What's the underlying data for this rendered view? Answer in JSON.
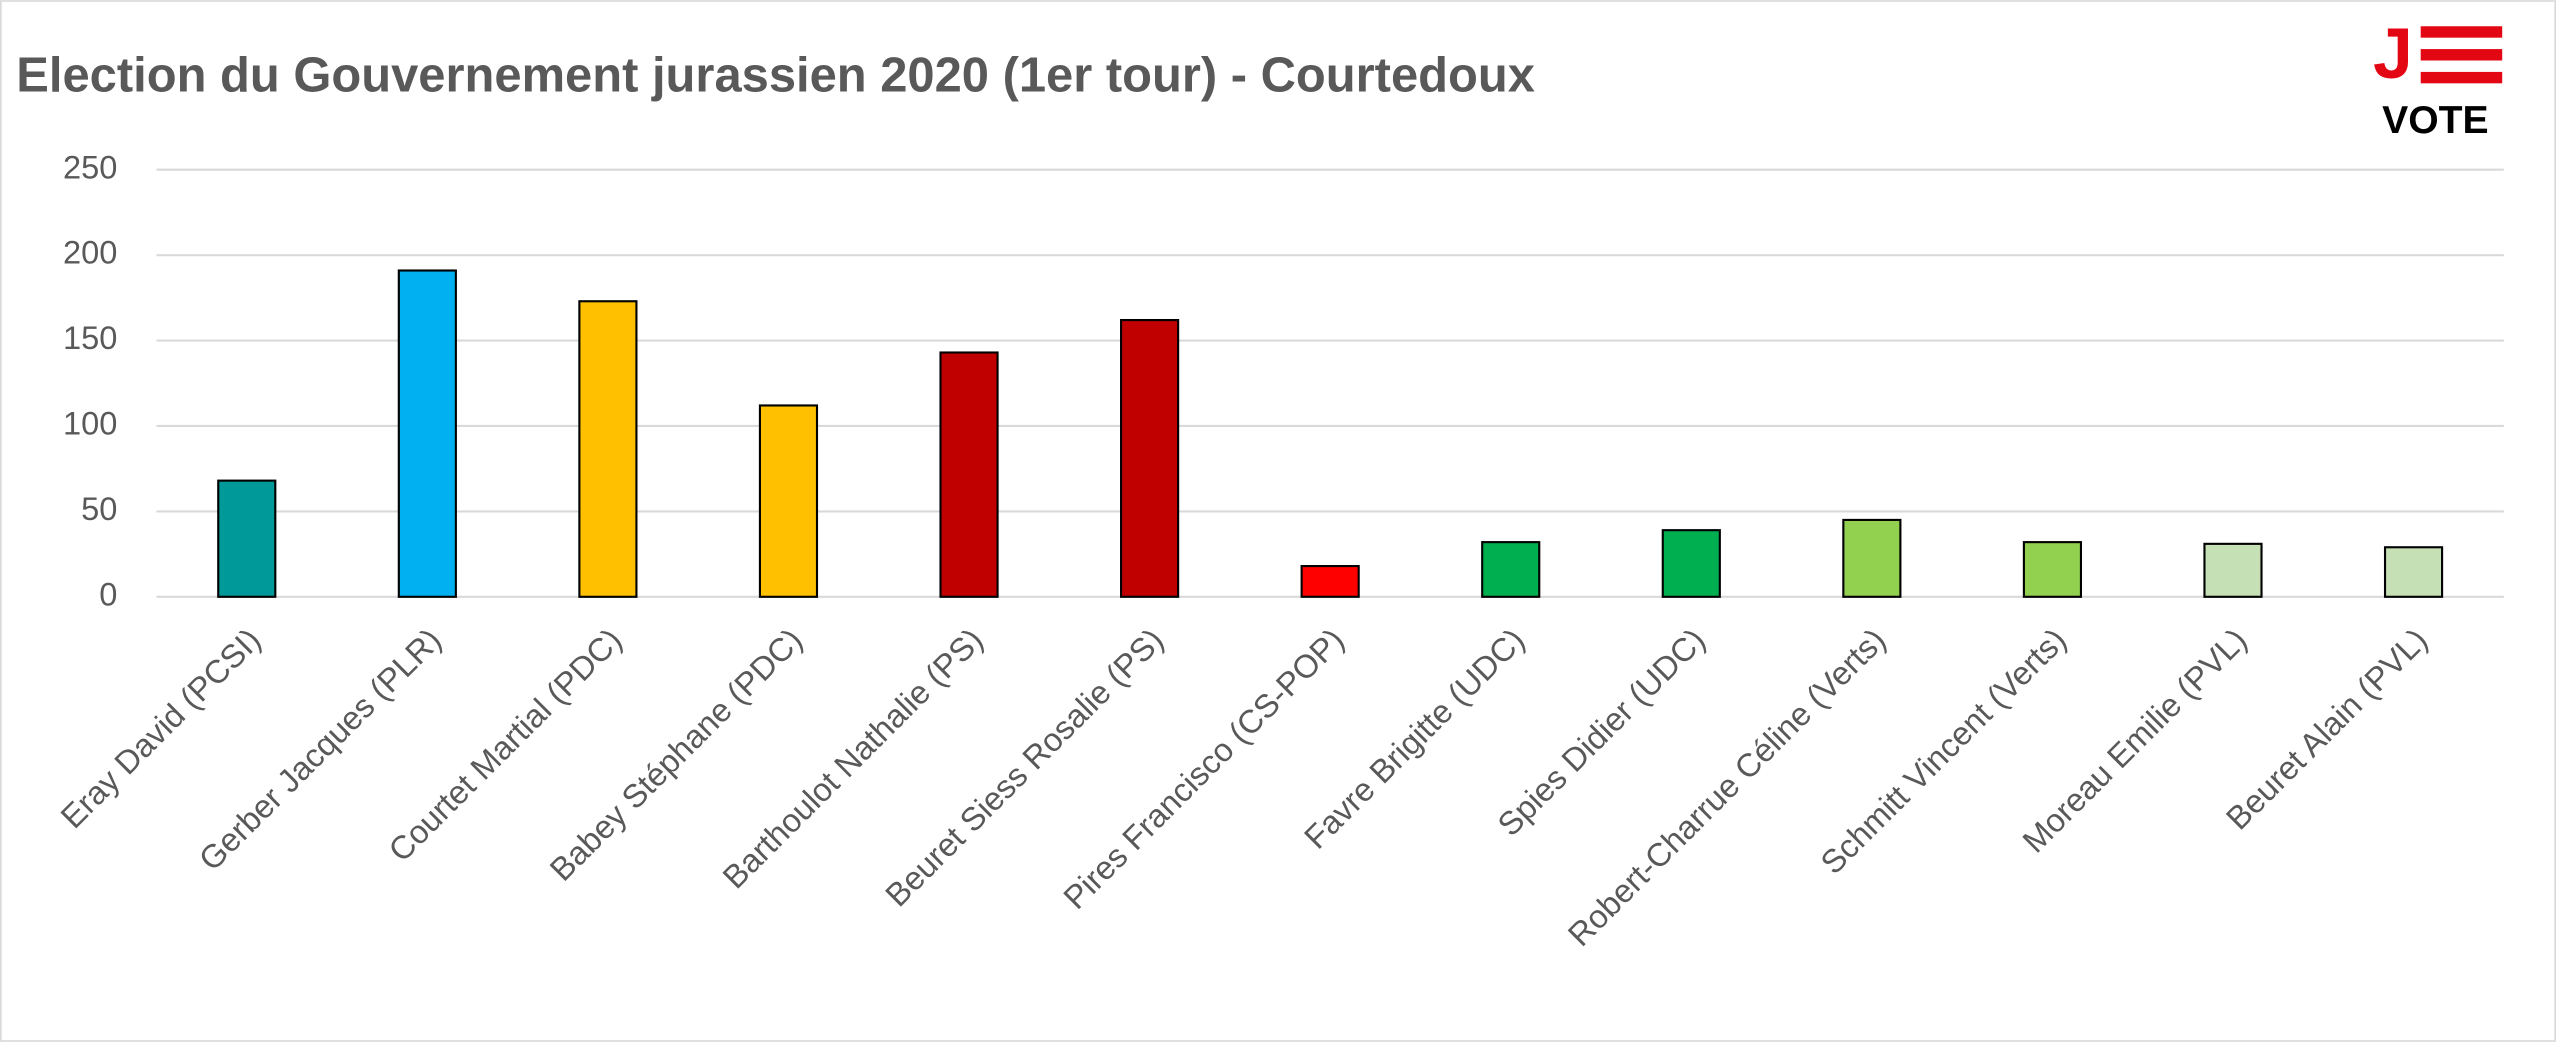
{
  "chart_data": {
    "type": "bar",
    "title": "Election du Gouvernement jurassien 2020 (1er tour) - Courtedoux",
    "logo": {
      "mark": "J",
      "text": "VOTE"
    },
    "categories": [
      "Eray David (PCSI)",
      "Gerber Jacques (PLR)",
      "Courtet Martial (PDC)",
      "Babey Stéphane (PDC)",
      "Barthoulot Nathalie (PS)",
      "Beuret Siess Rosalie (PS)",
      "Pires Francisco (CS-POP)",
      "Favre Brigitte (UDC)",
      "Spies Didier (UDC)",
      "Robert-Charrue Céline (Verts)",
      "Schmitt Vincent (Verts)",
      "Moreau Emilie (PVL)",
      "Beuret Alain (PVL)"
    ],
    "values": [
      68,
      191,
      173,
      112,
      143,
      162,
      18,
      32,
      39,
      45,
      32,
      31,
      29
    ],
    "colors": [
      "#009999",
      "#00b0f0",
      "#ffc000",
      "#ffc000",
      "#c00000",
      "#c00000",
      "#ff0000",
      "#00b050",
      "#00b050",
      "#92d050",
      "#92d050",
      "#c5e0b4",
      "#c5e0b4"
    ],
    "ylim": [
      0,
      250
    ],
    "yticks": [
      0,
      50,
      100,
      150,
      200,
      250
    ],
    "grid": true
  }
}
